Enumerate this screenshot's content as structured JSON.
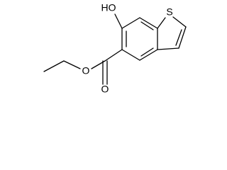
{
  "atoms": [
    {
      "label": "HO"
    },
    {
      "label": "S"
    },
    {
      "label": "O"
    },
    {
      "label": "O"
    }
  ]
}
